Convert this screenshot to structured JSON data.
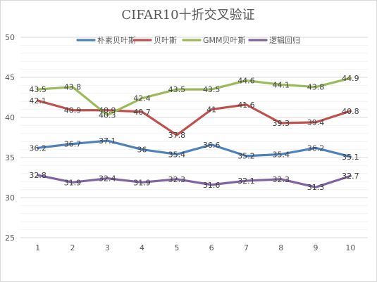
{
  "chart_data": {
    "type": "line",
    "title": "CIFAR10十折交叉验证",
    "xlabel": "",
    "ylabel": "",
    "x": [
      1,
      2,
      3,
      4,
      5,
      6,
      7,
      8,
      9,
      10
    ],
    "ylim": [
      25,
      50
    ],
    "yticks": [
      25,
      30,
      35,
      40,
      45,
      50
    ],
    "grid": true,
    "minor_grid": true,
    "legend_position": "top",
    "series": [
      {
        "name": "朴素贝叶斯",
        "color": "#4f81bd",
        "values": [
          36.2,
          36.7,
          37.1,
          36,
          35.4,
          36.6,
          35.2,
          35.4,
          36.2,
          35.1
        ],
        "labels": [
          "36.2",
          "36.7",
          "37.1",
          "36",
          "35.4",
          "36.6",
          "35.2",
          "35.4",
          "36.2",
          "35.1"
        ]
      },
      {
        "name": "贝叶斯",
        "color": "#c0504d",
        "values": [
          42.1,
          40.9,
          40.9,
          40.7,
          37.8,
          41,
          41.6,
          39.3,
          39.4,
          40.8
        ],
        "labels": [
          "42.1",
          "40.9",
          "40.9",
          "40.7",
          "37.8",
          "41",
          "41.6",
          "39.3",
          "39.4",
          "40.8"
        ]
      },
      {
        "name": "GMM贝叶斯",
        "color": "#9bbb59",
        "values": [
          43.5,
          43.8,
          40.3,
          42.4,
          43.5,
          43.5,
          44.6,
          44.1,
          43.8,
          44.9
        ],
        "labels": [
          "43.5",
          "43.8",
          "40.3",
          "42.4",
          "43.5",
          "43.5",
          "44.6",
          "44.1",
          "43.8",
          "44.9"
        ]
      },
      {
        "name": "逻辑回归",
        "color": "#8064a2",
        "values": [
          32.8,
          31.9,
          32.4,
          31.9,
          32.3,
          31.6,
          32.1,
          32.3,
          31.3,
          32.7
        ],
        "labels": [
          "32.8",
          "31.9",
          "32.4",
          "31.9",
          "32.3",
          "31.6",
          "32.1",
          "32.3",
          "31.3",
          "32.7"
        ]
      }
    ]
  }
}
